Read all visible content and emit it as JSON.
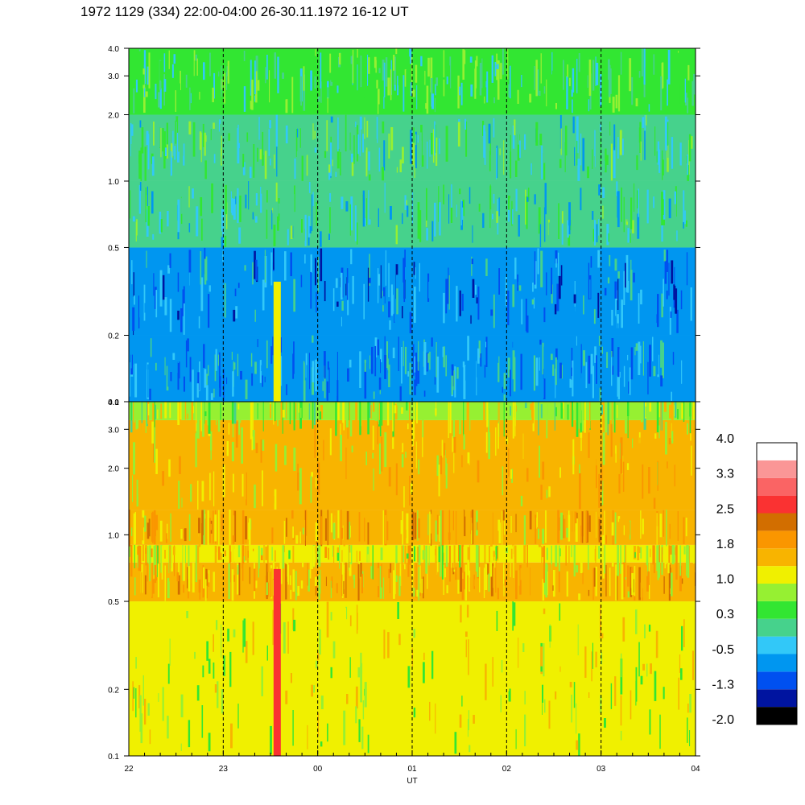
{
  "title": "1972 1129 (334) 22:00-04:00 26-30.11.1972  16-12 UT",
  "chart_data": [
    {
      "type": "heatmap",
      "panel": "upper",
      "xlabel": "",
      "ylabel": "",
      "y_scale": "log",
      "ylim": [
        0.1,
        4.0
      ],
      "xlim": [
        "22:00",
        "04:00"
      ],
      "y_ticks": [
        {
          "value": 0.1,
          "label": "0.1"
        },
        {
          "value": 0.2,
          "label": "0.2"
        },
        {
          "value": 0.5,
          "label": "0.5"
        },
        {
          "value": 1.0,
          "label": "1.0"
        },
        {
          "value": 2.0,
          "label": "2.0"
        },
        {
          "value": 3.0,
          "label": "3.0"
        },
        {
          "value": 4.0,
          "label": "4.0"
        }
      ],
      "band_levels": [
        {
          "y_from": 0.1,
          "y_to": 0.2,
          "level": -0.6
        },
        {
          "y_from": 0.2,
          "y_to": 0.5,
          "level": -0.8
        },
        {
          "y_from": 0.5,
          "y_to": 1.0,
          "level": -0.1
        },
        {
          "y_from": 1.0,
          "y_to": 2.0,
          "level": 0.1
        },
        {
          "y_from": 2.0,
          "y_to": 4.0,
          "level": 0.2
        }
      ],
      "events": [
        {
          "x": "23:34",
          "y_from": 0.1,
          "y_to": 0.35,
          "level": 1.1
        }
      ]
    },
    {
      "type": "heatmap",
      "panel": "lower",
      "xlabel": "UT",
      "ylabel": "",
      "y_scale": "log",
      "ylim": [
        0.1,
        4.0
      ],
      "xlim": [
        "22:00",
        "04:00"
      ],
      "y_ticks": [
        {
          "value": 0.1,
          "label": "0.1"
        },
        {
          "value": 0.2,
          "label": "0.2"
        },
        {
          "value": 0.5,
          "label": "0.5"
        },
        {
          "value": 1.0,
          "label": "1.0"
        },
        {
          "value": 2.0,
          "label": "2.0"
        },
        {
          "value": 3.0,
          "label": "3.0"
        },
        {
          "value": 4.0,
          "label": "4.0"
        }
      ],
      "x_ticks": [
        {
          "value": 0,
          "label": "22"
        },
        {
          "value": 1,
          "label": "23"
        },
        {
          "value": 2,
          "label": "00"
        },
        {
          "value": 3,
          "label": "01"
        },
        {
          "value": 4,
          "label": "02"
        },
        {
          "value": 5,
          "label": "03"
        },
        {
          "value": 6,
          "label": "04"
        }
      ],
      "band_levels": [
        {
          "y_from": 0.1,
          "y_to": 0.5,
          "level": 1.0
        },
        {
          "y_from": 0.5,
          "y_to": 0.75,
          "level": 1.6
        },
        {
          "y_from": 0.75,
          "y_to": 0.9,
          "level": 1.3
        },
        {
          "y_from": 0.9,
          "y_to": 1.3,
          "level": 1.7
        },
        {
          "y_from": 1.3,
          "y_to": 3.3,
          "level": 1.4
        },
        {
          "y_from": 3.3,
          "y_to": 4.0,
          "level": 0.9
        }
      ],
      "events": [
        {
          "x": "23:34",
          "y_from": 0.1,
          "y_to": 0.7,
          "level": 2.9
        }
      ]
    }
  ],
  "colorbar": {
    "colors": [
      "#000000",
      "#0014a0",
      "#0050f0",
      "#0096f0",
      "#32c8f8",
      "#46d28c",
      "#32e632",
      "#96f032",
      "#f0f000",
      "#f8b400",
      "#fa9600",
      "#d26e00",
      "#fa3232",
      "#fa6464",
      "#fa9696",
      "#ffffff"
    ],
    "labels": [
      "-2.0",
      "-1.3",
      "-0.5",
      "0.3",
      "1.0",
      "1.8",
      "2.5",
      "3.3",
      "4.0"
    ],
    "level_min": -2.0,
    "level_max": 4.0
  }
}
